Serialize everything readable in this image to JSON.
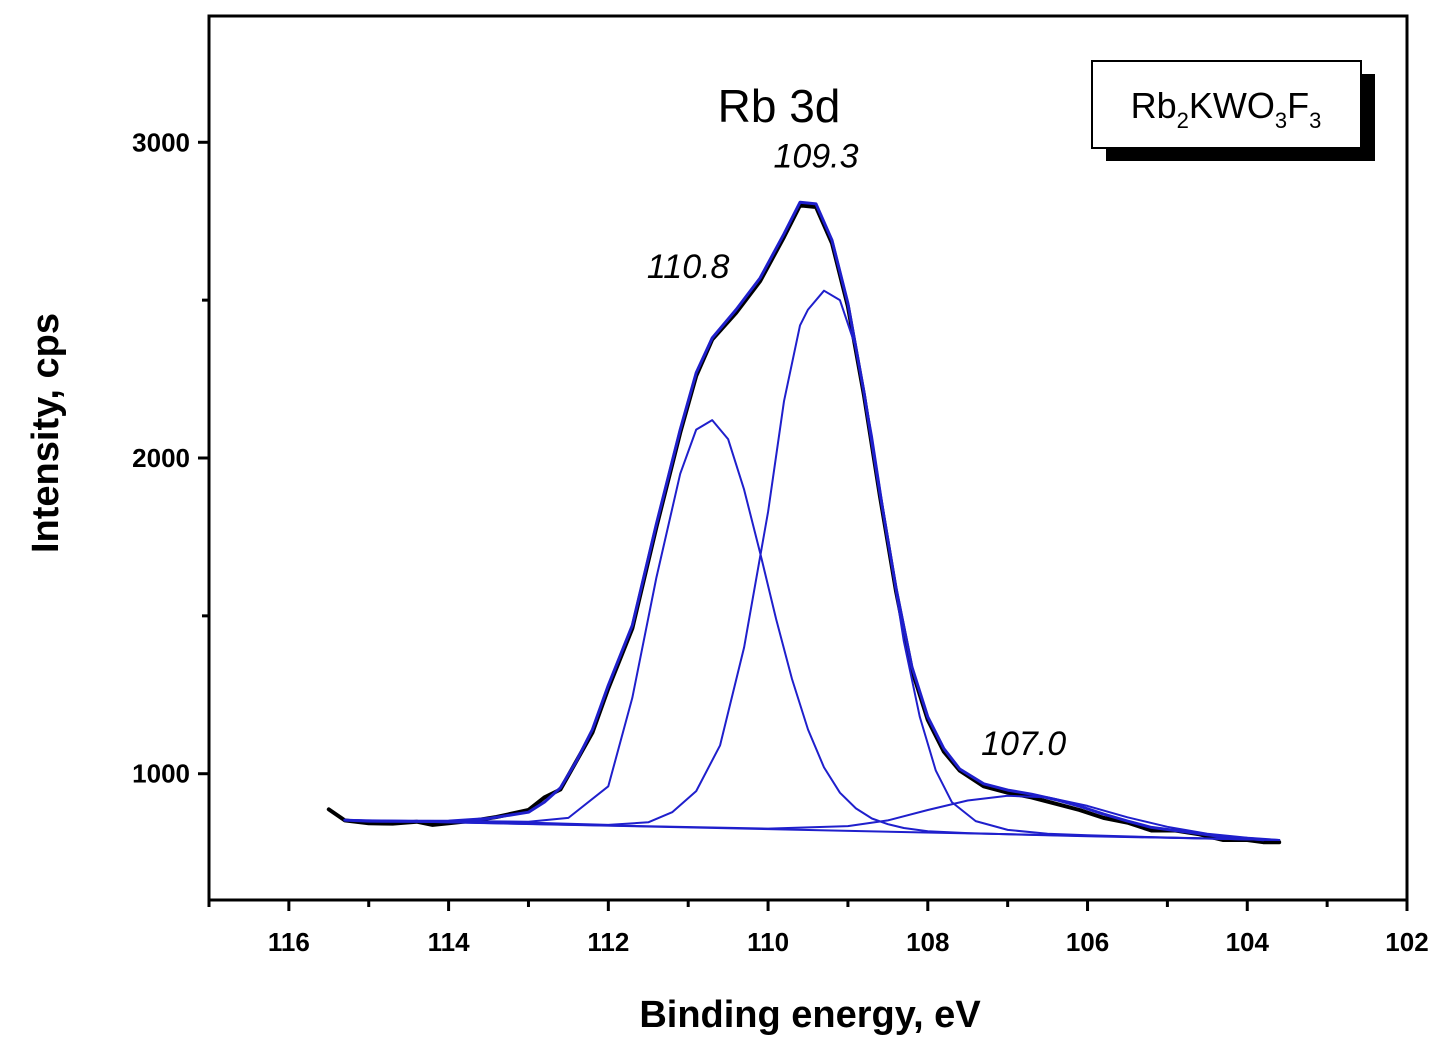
{
  "chart_data": {
    "type": "line",
    "title": "Rb 3d",
    "xlabel": "Binding energy, eV",
    "ylabel": "Intensity, cps",
    "xlim": [
      117,
      102
    ],
    "x_reversed": true,
    "ylim": [
      600,
      3400
    ],
    "x_ticks": [
      116,
      114,
      112,
      110,
      108,
      106,
      104,
      102
    ],
    "y_ticks": [
      1000,
      2000,
      3000
    ],
    "legend": {
      "placement": "top-right",
      "parts": [
        {
          "text": "Rb",
          "sub": "2"
        },
        {
          "text": "KWO",
          "sub": "3"
        },
        {
          "text": "F",
          "sub": "3"
        }
      ]
    },
    "annotations": [
      {
        "text": "110.8",
        "x": 111.0,
        "y": 2570
      },
      {
        "text": "109.3",
        "x": 109.4,
        "y": 2920
      },
      {
        "text": "107.0",
        "x": 106.8,
        "y": 1060
      }
    ],
    "series": [
      {
        "name": "experimental",
        "color": "#000000",
        "width": 4,
        "x": [
          115.5,
          115.3,
          115.0,
          114.7,
          114.4,
          114.2,
          114.0,
          113.7,
          113.4,
          113.0,
          112.8,
          112.6,
          112.4,
          112.2,
          112.0,
          111.7,
          111.4,
          111.1,
          110.9,
          110.7,
          110.4,
          110.1,
          109.8,
          109.6,
          109.4,
          109.2,
          109.0,
          108.8,
          108.6,
          108.4,
          108.2,
          108.0,
          107.8,
          107.6,
          107.3,
          107.0,
          106.7,
          106.4,
          106.1,
          105.8,
          105.5,
          105.2,
          104.9,
          104.6,
          104.3,
          104.0,
          103.8,
          103.6
        ],
        "y": [
          887,
          852,
          843,
          842,
          848,
          838,
          843,
          851,
          863,
          885,
          925,
          950,
          1040,
          1130,
          1270,
          1460,
          1780,
          2080,
          2260,
          2375,
          2460,
          2560,
          2700,
          2800,
          2795,
          2680,
          2480,
          2200,
          1880,
          1580,
          1330,
          1170,
          1070,
          1010,
          960,
          940,
          925,
          905,
          885,
          860,
          845,
          820,
          820,
          808,
          790,
          790,
          783,
          783
        ]
      },
      {
        "name": "fit envelope",
        "color": "#1f1fcc",
        "width": 3,
        "x": [
          115.3,
          115.0,
          114.5,
          114.0,
          113.5,
          113.0,
          112.8,
          112.6,
          112.4,
          112.2,
          112.0,
          111.7,
          111.4,
          111.1,
          110.9,
          110.7,
          110.4,
          110.1,
          109.8,
          109.6,
          109.4,
          109.2,
          109.0,
          108.8,
          108.6,
          108.4,
          108.2,
          108.0,
          107.8,
          107.6,
          107.3,
          107.0,
          106.7,
          106.4,
          106.1,
          105.8,
          105.5,
          105.2,
          104.9,
          104.6,
          104.3,
          104.0,
          103.8
        ],
        "y": [
          853,
          850,
          849,
          850,
          858,
          878,
          910,
          955,
          1040,
          1140,
          1280,
          1470,
          1790,
          2090,
          2270,
          2380,
          2470,
          2570,
          2710,
          2810,
          2805,
          2690,
          2490,
          2210,
          1890,
          1590,
          1340,
          1180,
          1080,
          1015,
          968,
          948,
          935,
          918,
          897,
          872,
          850,
          830,
          820,
          810,
          800,
          795,
          791
        ]
      },
      {
        "name": "component 110.8 eV",
        "color": "#1f1fcc",
        "width": 2,
        "x": [
          115.3,
          114.0,
          113.0,
          112.5,
          112.0,
          111.7,
          111.4,
          111.1,
          110.9,
          110.7,
          110.5,
          110.3,
          110.1,
          109.9,
          109.7,
          109.5,
          109.3,
          109.1,
          108.9,
          108.7,
          108.5,
          108.3,
          108.0,
          107.5,
          107.0,
          106.0,
          105.0,
          104.0,
          103.6
        ],
        "y": [
          853,
          850,
          848,
          860,
          960,
          1240,
          1620,
          1950,
          2090,
          2120,
          2060,
          1900,
          1700,
          1490,
          1300,
          1140,
          1020,
          940,
          890,
          858,
          840,
          828,
          818,
          812,
          808,
          802,
          797,
          792,
          790
        ]
      },
      {
        "name": "component 109.3 eV",
        "color": "#1f1fcc",
        "width": 2,
        "x": [
          115.3,
          113.0,
          112.0,
          111.5,
          111.2,
          110.9,
          110.6,
          110.3,
          110.0,
          109.8,
          109.6,
          109.5,
          109.3,
          109.1,
          108.9,
          108.7,
          108.5,
          108.3,
          108.1,
          107.9,
          107.7,
          107.4,
          107.0,
          106.5,
          106.0,
          105.0,
          104.0,
          103.6
        ],
        "y": [
          853,
          845,
          838,
          846,
          878,
          945,
          1090,
          1400,
          1830,
          2180,
          2420,
          2470,
          2530,
          2500,
          2350,
          2070,
          1740,
          1420,
          1180,
          1010,
          910,
          850,
          822,
          810,
          805,
          798,
          792,
          790
        ]
      },
      {
        "name": "component 107.0 eV",
        "color": "#1f1fcc",
        "width": 2,
        "x": [
          115.3,
          112.0,
          110.0,
          109.0,
          108.5,
          108.0,
          107.5,
          107.0,
          106.5,
          106.0,
          105.5,
          105.0,
          104.5,
          104.0,
          103.6
        ],
        "y": [
          853,
          836,
          826,
          834,
          852,
          885,
          915,
          930,
          925,
          898,
          862,
          832,
          810,
          797,
          790
        ]
      },
      {
        "name": "background",
        "color": "#1f1fcc",
        "width": 2,
        "x": [
          115.3,
          103.6
        ],
        "y": [
          853,
          790
        ]
      }
    ]
  }
}
